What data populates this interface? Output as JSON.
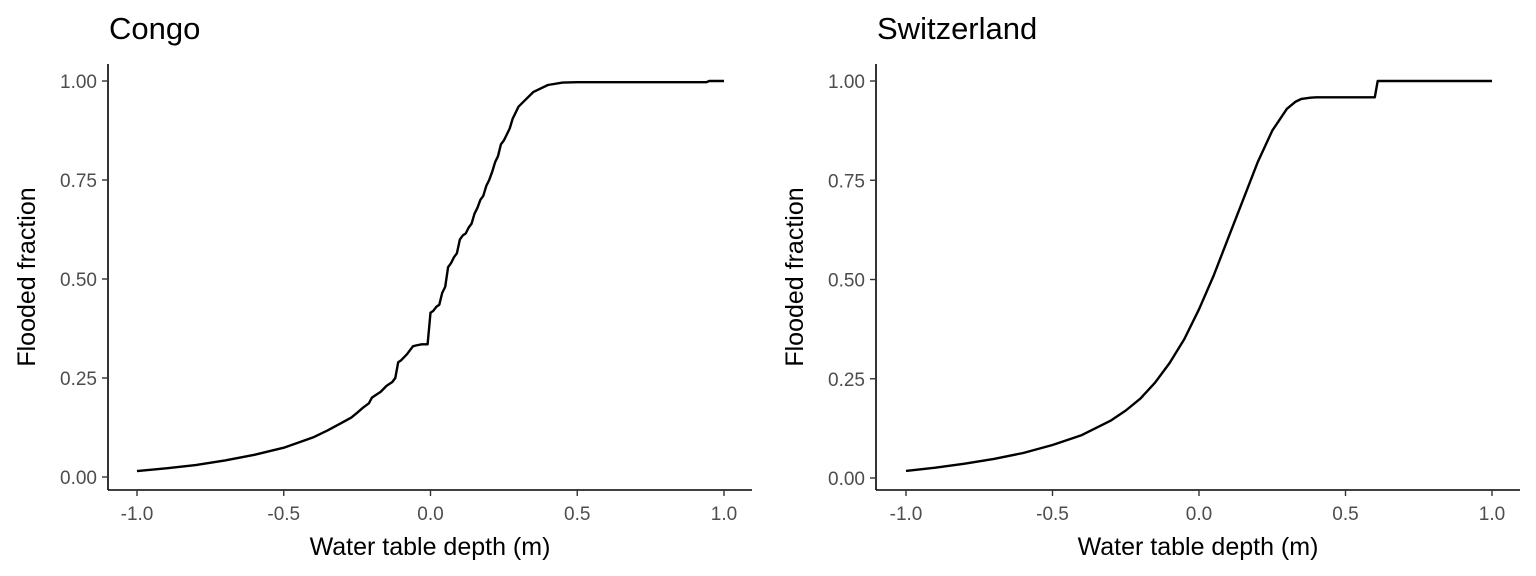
{
  "chart_data": [
    {
      "type": "line",
      "title": "Congo",
      "xlabel": "Water table depth (m)",
      "ylabel": "Flooded fraction",
      "xlim": [
        -1.0,
        1.0
      ],
      "ylim": [
        0.0,
        1.0
      ],
      "xticks": [
        -1.0,
        -0.5,
        0.0,
        0.5,
        1.0
      ],
      "xtick_labels": [
        "-1.0",
        "-0.5",
        "0.0",
        "0.5",
        "1.0"
      ],
      "yticks": [
        0.0,
        0.25,
        0.5,
        0.75,
        1.0
      ],
      "ytick_labels": [
        "0.00",
        "0.25",
        "0.50",
        "0.75",
        "1.00"
      ],
      "grid": false,
      "series": [
        {
          "x": [
            -1.0,
            -0.9,
            -0.8,
            -0.7,
            -0.6,
            -0.5,
            -0.4,
            -0.35,
            -0.3,
            -0.27,
            -0.25,
            -0.23,
            -0.21,
            -0.2,
            -0.19,
            -0.17,
            -0.15,
            -0.13,
            -0.12,
            -0.11,
            -0.1,
            -0.08,
            -0.06,
            -0.05,
            -0.03,
            -0.01,
            0.0,
            0.01,
            0.02,
            0.03,
            0.04,
            0.05,
            0.06,
            0.07,
            0.08,
            0.09,
            0.1,
            0.11,
            0.12,
            0.13,
            0.14,
            0.15,
            0.16,
            0.17,
            0.18,
            0.19,
            0.2,
            0.21,
            0.22,
            0.23,
            0.24,
            0.25,
            0.26,
            0.27,
            0.28,
            0.29,
            0.3,
            0.32,
            0.35,
            0.4,
            0.45,
            0.5,
            0.6,
            0.7,
            0.8,
            0.9,
            0.94,
            0.95,
            1.0
          ],
          "y": [
            0.015,
            0.022,
            0.03,
            0.042,
            0.056,
            0.074,
            0.1,
            0.118,
            0.138,
            0.15,
            0.162,
            0.175,
            0.186,
            0.2,
            0.205,
            0.215,
            0.23,
            0.24,
            0.25,
            0.29,
            0.295,
            0.31,
            0.33,
            0.332,
            0.335,
            0.335,
            0.415,
            0.42,
            0.43,
            0.435,
            0.465,
            0.48,
            0.53,
            0.54,
            0.555,
            0.565,
            0.6,
            0.61,
            0.615,
            0.63,
            0.64,
            0.665,
            0.68,
            0.7,
            0.71,
            0.735,
            0.75,
            0.77,
            0.795,
            0.81,
            0.84,
            0.85,
            0.865,
            0.88,
            0.905,
            0.92,
            0.935,
            0.95,
            0.972,
            0.99,
            0.996,
            0.997,
            0.997,
            0.997,
            0.997,
            0.997,
            0.997,
            1.0,
            1.0
          ]
        }
      ]
    },
    {
      "type": "line",
      "title": "Switzerland",
      "xlabel": "Water table depth (m)",
      "ylabel": "Flooded fraction",
      "xlim": [
        -1.0,
        1.0
      ],
      "ylim": [
        0.0,
        1.0
      ],
      "xticks": [
        -1.0,
        -0.5,
        0.0,
        0.5,
        1.0
      ],
      "xtick_labels": [
        "-1.0",
        "-0.5",
        "0.0",
        "0.5",
        "1.0"
      ],
      "yticks": [
        0.0,
        0.25,
        0.5,
        0.75,
        1.0
      ],
      "ytick_labels": [
        "0.00",
        "0.25",
        "0.50",
        "0.75",
        "1.00"
      ],
      "grid": false,
      "series": [
        {
          "x": [
            -1.0,
            -0.9,
            -0.8,
            -0.7,
            -0.6,
            -0.5,
            -0.4,
            -0.3,
            -0.25,
            -0.2,
            -0.15,
            -0.1,
            -0.05,
            0.0,
            0.05,
            0.1,
            0.15,
            0.2,
            0.25,
            0.3,
            0.33,
            0.35,
            0.38,
            0.4,
            0.45,
            0.5,
            0.55,
            0.6,
            0.61,
            0.65,
            0.7,
            0.8,
            0.9,
            1.0
          ],
          "y": [
            0.018,
            0.026,
            0.036,
            0.048,
            0.063,
            0.083,
            0.108,
            0.145,
            0.17,
            0.2,
            0.24,
            0.29,
            0.35,
            0.425,
            0.51,
            0.605,
            0.7,
            0.795,
            0.875,
            0.93,
            0.948,
            0.955,
            0.958,
            0.959,
            0.959,
            0.959,
            0.959,
            0.959,
            1.0,
            1.0,
            1.0,
            1.0,
            1.0,
            1.0
          ]
        }
      ]
    }
  ]
}
